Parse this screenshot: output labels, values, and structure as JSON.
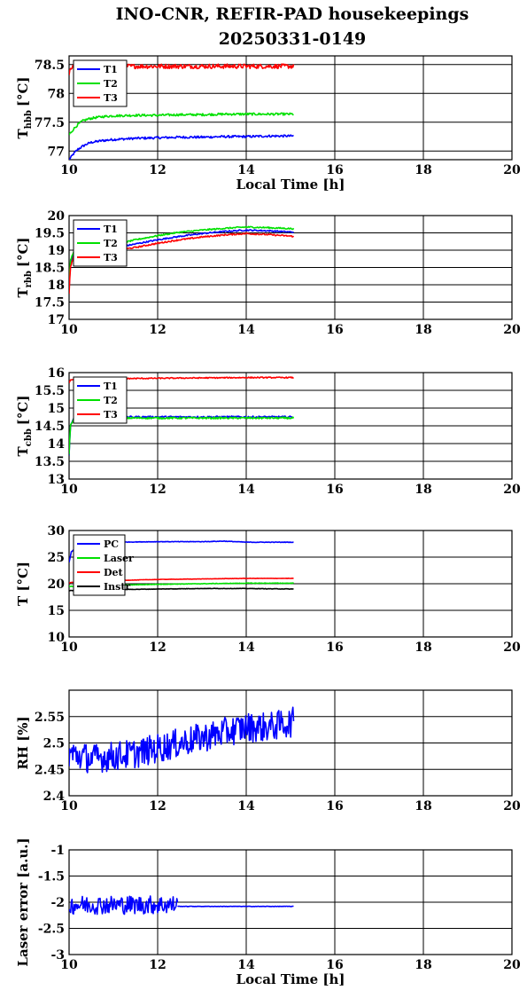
{
  "title": "INO-CNR, REFIR-PAD housekeepings",
  "subtitle": "20250331-0149",
  "chart_data": [
    {
      "type": "line",
      "ylabel": "T",
      "ylabel_sub": "hbb",
      "ylabel_unit": "[°C]",
      "xlabel": "Local Time [h]",
      "xlim": [
        10,
        20
      ],
      "ylim": [
        76.85,
        78.65
      ],
      "xticks": [
        "10",
        "12",
        "14",
        "16",
        "18",
        "20"
      ],
      "yticks": [
        "77",
        "77.5",
        "78",
        "78.5"
      ],
      "ytick_values": [
        77,
        77.5,
        78,
        78.5
      ],
      "grid": true,
      "legend_position": "top-left",
      "series": [
        {
          "name": "T1",
          "color": "#0000ff",
          "x": [
            10.0,
            10.1,
            10.2,
            10.3,
            10.4,
            10.5,
            10.75,
            11.0,
            11.5,
            12.0,
            12.5,
            13.0,
            13.5,
            14.0,
            14.5,
            15.07
          ],
          "y": [
            76.85,
            76.95,
            77.03,
            77.08,
            77.12,
            77.15,
            77.18,
            77.2,
            77.22,
            77.23,
            77.24,
            77.24,
            77.25,
            77.25,
            77.26,
            77.26
          ],
          "noise": 0.02
        },
        {
          "name": "T2",
          "color": "#00e000",
          "x": [
            10.0,
            10.1,
            10.2,
            10.3,
            10.45,
            10.6,
            10.8,
            11.0,
            11.5,
            12.0,
            12.5,
            13.0,
            13.5,
            14.0,
            14.5,
            15.07
          ],
          "y": [
            77.28,
            77.38,
            77.46,
            77.52,
            77.56,
            77.58,
            77.6,
            77.61,
            77.62,
            77.62,
            77.63,
            77.63,
            77.64,
            77.64,
            77.64,
            77.64
          ],
          "noise": 0.02
        },
        {
          "name": "T3",
          "color": "#ff0000",
          "x": [
            10.0,
            10.03,
            10.1,
            10.3,
            11.0,
            12.0,
            13.0,
            14.0,
            15.07
          ],
          "y": [
            78.3,
            78.42,
            78.46,
            78.47,
            78.47,
            78.47,
            78.47,
            78.47,
            78.47
          ],
          "noise": 0.04
        }
      ]
    },
    {
      "type": "line",
      "ylabel": "T",
      "ylabel_sub": "rbb",
      "ylabel_unit": "[°C]",
      "xlabel": "",
      "xlim": [
        10,
        20
      ],
      "ylim": [
        17,
        20
      ],
      "xticks": [
        "10",
        "12",
        "14",
        "16",
        "18",
        "20"
      ],
      "yticks": [
        "17",
        "17.5",
        "18",
        "18.5",
        "19",
        "19.5",
        "20"
      ],
      "ytick_values": [
        17,
        17.5,
        18,
        18.5,
        19,
        19.5,
        20
      ],
      "grid": true,
      "legend_position": "top-left",
      "series": [
        {
          "name": "T1",
          "color": "#0000ff",
          "x": [
            10.0,
            10.03,
            10.1,
            10.5,
            11.0,
            11.5,
            12.0,
            12.5,
            13.0,
            13.5,
            14.0,
            14.5,
            15.07
          ],
          "y": [
            17.9,
            18.6,
            18.85,
            18.95,
            19.05,
            19.18,
            19.3,
            19.4,
            19.48,
            19.54,
            19.58,
            19.56,
            19.52
          ],
          "noise": 0.02
        },
        {
          "name": "T2",
          "color": "#00e000",
          "x": [
            10.0,
            10.03,
            10.1,
            10.5,
            11.0,
            11.5,
            12.0,
            12.5,
            13.0,
            13.5,
            14.0,
            14.5,
            15.07
          ],
          "y": [
            18.0,
            18.7,
            18.95,
            19.05,
            19.15,
            19.3,
            19.42,
            19.52,
            19.58,
            19.63,
            19.67,
            19.65,
            19.62
          ],
          "noise": 0.02
        },
        {
          "name": "T3",
          "color": "#ff0000",
          "x": [
            10.0,
            10.03,
            10.1,
            10.5,
            11.0,
            11.5,
            12.0,
            12.5,
            13.0,
            13.5,
            14.0,
            14.5,
            15.07
          ],
          "y": [
            17.75,
            18.5,
            18.8,
            18.9,
            18.98,
            19.08,
            19.2,
            19.3,
            19.38,
            19.44,
            19.48,
            19.45,
            19.4
          ],
          "noise": 0.02
        }
      ]
    },
    {
      "type": "line",
      "ylabel": "T",
      "ylabel_sub": "cbb",
      "ylabel_unit": "[°C]",
      "xlabel": "",
      "xlim": [
        10,
        20
      ],
      "ylim": [
        13,
        16
      ],
      "xticks": [
        "10",
        "12",
        "14",
        "16",
        "18",
        "20"
      ],
      "yticks": [
        "13",
        "13.5",
        "14",
        "14.5",
        "15",
        "15.5",
        "16"
      ],
      "ytick_values": [
        13,
        13.5,
        14,
        14.5,
        15,
        15.5,
        16
      ],
      "grid": true,
      "legend_position": "top-left",
      "series": [
        {
          "name": "T1",
          "color": "#0000ff",
          "x": [
            10.0,
            10.03,
            10.1,
            10.3,
            11.0,
            12.0,
            13.0,
            14.0,
            15.07
          ],
          "y": [
            13.65,
            14.5,
            14.72,
            14.75,
            14.75,
            14.75,
            14.75,
            14.75,
            14.75
          ],
          "noise": 0.025
        },
        {
          "name": "T2",
          "color": "#00e000",
          "x": [
            10.0,
            10.03,
            10.1,
            10.3,
            11.0,
            12.0,
            13.0,
            14.0,
            15.07
          ],
          "y": [
            13.7,
            14.5,
            14.7,
            14.72,
            14.72,
            14.72,
            14.72,
            14.72,
            14.72
          ],
          "noise": 0.025
        },
        {
          "name": "T3",
          "color": "#ff0000",
          "x": [
            10.0,
            10.03,
            10.1,
            10.5,
            11.0,
            12.0,
            13.0,
            14.0,
            15.07
          ],
          "y": [
            15.7,
            15.78,
            15.8,
            15.82,
            15.83,
            15.84,
            15.85,
            15.86,
            15.86
          ],
          "noise": 0.015
        }
      ]
    },
    {
      "type": "line",
      "ylabel": "T [°C]",
      "xlabel": "",
      "xlim": [
        10,
        20
      ],
      "ylim": [
        10,
        30
      ],
      "xticks": [
        "10",
        "12",
        "14",
        "16",
        "18",
        "20"
      ],
      "yticks": [
        "10",
        "15",
        "20",
        "25",
        "30"
      ],
      "ytick_values": [
        10,
        15,
        20,
        25,
        30
      ],
      "grid": true,
      "legend_position": "top-left",
      "series": [
        {
          "name": "PC",
          "color": "#0000ff",
          "x": [
            10.0,
            10.05,
            10.2,
            10.5,
            11.0,
            12.0,
            13.0,
            13.5,
            14.0,
            15.07
          ],
          "y": [
            24.0,
            26.0,
            27.0,
            27.5,
            27.8,
            27.9,
            27.9,
            28.0,
            27.8,
            27.8
          ],
          "noise": 0.05
        },
        {
          "name": "Laser",
          "color": "#00e000",
          "x": [
            10.0,
            10.3,
            11.0,
            12.0,
            13.0,
            14.0,
            15.07
          ],
          "y": [
            19.5,
            19.6,
            19.7,
            19.9,
            20.0,
            20.1,
            20.1
          ],
          "noise": 0.05
        },
        {
          "name": "Det",
          "color": "#ff0000",
          "x": [
            10.0,
            10.3,
            11.0,
            12.0,
            13.0,
            14.0,
            15.07
          ],
          "y": [
            20.2,
            20.4,
            20.6,
            20.8,
            20.9,
            21.0,
            21.0
          ],
          "noise": 0.03
        },
        {
          "name": "Instr",
          "color": "#000000",
          "x": [
            10.0,
            10.3,
            11.0,
            12.0,
            13.0,
            14.0,
            15.07
          ],
          "y": [
            18.7,
            18.8,
            18.9,
            19.0,
            19.1,
            19.1,
            19.0
          ],
          "noise": 0.04
        }
      ]
    },
    {
      "type": "line",
      "ylabel": "RH [%]",
      "xlabel": "",
      "xlim": [
        10,
        20
      ],
      "ylim": [
        2.4,
        2.6
      ],
      "xticks": [
        "10",
        "12",
        "14",
        "16",
        "18",
        "20"
      ],
      "yticks": [
        "2.4",
        "2.45",
        "2.5",
        "2.55"
      ],
      "ytick_values": [
        2.4,
        2.45,
        2.5,
        2.55
      ],
      "grid": true,
      "series": [
        {
          "color": "#0000ff",
          "x": [
            10.0,
            10.5,
            11.0,
            11.5,
            12.0,
            12.5,
            13.0,
            13.5,
            14.0,
            14.5,
            15.07
          ],
          "y": [
            2.48,
            2.47,
            2.475,
            2.48,
            2.49,
            2.5,
            2.51,
            2.52,
            2.53,
            2.53,
            2.54
          ],
          "noise": 0.028
        }
      ]
    },
    {
      "type": "line",
      "ylabel": "Laser error [a.u.]",
      "xlabel": "Local Time [h]",
      "xlim": [
        10,
        20
      ],
      "ylim": [
        -3,
        -1
      ],
      "xticks": [
        "10",
        "12",
        "14",
        "16",
        "18",
        "20"
      ],
      "yticks": [
        "-3",
        "-2.5",
        "-2",
        "-1.5",
        "-1"
      ],
      "ytick_values": [
        -3,
        -2.5,
        -2,
        -1.5,
        -1
      ],
      "grid": true,
      "series": [
        {
          "color": "#0000ff",
          "x": [
            10.0,
            11.0,
            12.0,
            12.45
          ],
          "y": [
            -2.05,
            -2.05,
            -2.05,
            -2.05
          ],
          "noise": 0.18
        },
        {
          "color": "#0000ff",
          "x": [
            12.45,
            13.0,
            14.0,
            15.07
          ],
          "y": [
            -2.08,
            -2.08,
            -2.08,
            -2.08
          ],
          "noise": 0.004
        }
      ]
    }
  ]
}
